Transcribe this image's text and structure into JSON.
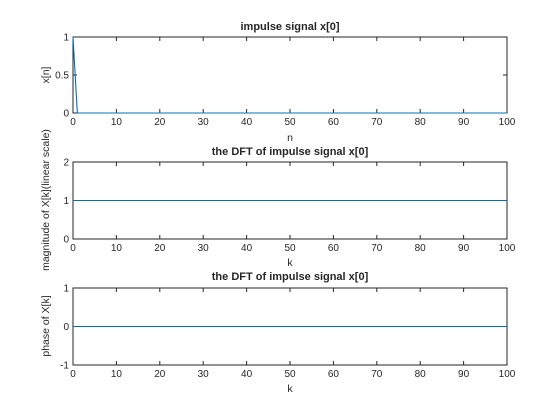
{
  "chart_data": [
    {
      "type": "line",
      "title": "impulse signal x[0]",
      "xlabel": "n",
      "ylabel": "x[n]",
      "xlim": [
        0,
        100
      ],
      "ylim": [
        0,
        1
      ],
      "xticks": [
        0,
        10,
        20,
        30,
        40,
        50,
        60,
        70,
        80,
        90,
        100
      ],
      "yticks": [
        0,
        0.5,
        1
      ],
      "ytick_labels": [
        "0",
        "0.5",
        "1"
      ],
      "grid": false,
      "series": [
        {
          "color": "#0072bd",
          "x": [
            0,
            1,
            2,
            100
          ],
          "y": [
            1,
            0,
            0,
            0
          ]
        }
      ]
    },
    {
      "type": "line",
      "title": "the DFT of impulse signal x[0]",
      "xlabel": "k",
      "ylabel": "magnitude of X[k](linear scale)",
      "xlim": [
        0,
        100
      ],
      "ylim": [
        0,
        2
      ],
      "xticks": [
        0,
        10,
        20,
        30,
        40,
        50,
        60,
        70,
        80,
        90,
        100
      ],
      "yticks": [
        0,
        1,
        2
      ],
      "ytick_labels": [
        "0",
        "1",
        "2"
      ],
      "grid": false,
      "series": [
        {
          "color": "#0072bd",
          "x": [
            0,
            100
          ],
          "y": [
            1,
            1
          ]
        }
      ]
    },
    {
      "type": "line",
      "title": "the DFT of impulse signal x[0]",
      "xlabel": "k",
      "ylabel": "phase of X[k]",
      "xlim": [
        0,
        100
      ],
      "ylim": [
        -1,
        1
      ],
      "xticks": [
        0,
        10,
        20,
        30,
        40,
        50,
        60,
        70,
        80,
        90,
        100
      ],
      "yticks": [
        -1,
        0,
        1
      ],
      "ytick_labels": [
        "-1",
        "0",
        "1"
      ],
      "grid": false,
      "series": [
        {
          "color": "#0072bd",
          "x": [
            0,
            100
          ],
          "y": [
            0,
            0
          ]
        }
      ]
    }
  ]
}
